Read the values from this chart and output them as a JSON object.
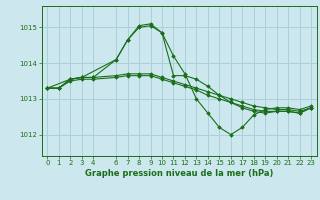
{
  "bg_color": "#cce8ee",
  "grid_color": "#aad0d8",
  "line_color": "#1a6e1a",
  "title": "Graphe pression niveau de la mer (hPa)",
  "xlim": [
    -0.5,
    23.5
  ],
  "ylim": [
    1011.4,
    1015.6
  ],
  "yticks": [
    1012,
    1013,
    1014,
    1015
  ],
  "xtick_vals": [
    0,
    1,
    2,
    3,
    4,
    6,
    7,
    8,
    9,
    10,
    11,
    12,
    13,
    14,
    15,
    16,
    17,
    18,
    19,
    20,
    21,
    22,
    23
  ],
  "xtick_labels": [
    "0",
    "1",
    "2",
    "3",
    "4",
    "6",
    "7",
    "8",
    "9",
    "10",
    "11",
    "12",
    "13",
    "14",
    "15",
    "16",
    "17",
    "18",
    "19",
    "20",
    "21",
    "22",
    "23"
  ],
  "series": [
    {
      "x": [
        0,
        1,
        2,
        3,
        4,
        6,
        7,
        8,
        9,
        10,
        11,
        12,
        13,
        14,
        15,
        16,
        17,
        18,
        19,
        20,
        21,
        22,
        23
      ],
      "y": [
        1013.3,
        1013.3,
        1013.55,
        1013.6,
        1013.6,
        1013.65,
        1013.7,
        1013.7,
        1013.7,
        1013.6,
        1013.5,
        1013.4,
        1013.3,
        1013.2,
        1013.1,
        1013.0,
        1012.9,
        1012.8,
        1012.75,
        1012.7,
        1012.7,
        1012.65,
        1012.75
      ]
    },
    {
      "x": [
        0,
        1,
        2,
        3,
        4,
        6,
        7,
        8,
        9,
        10,
        11,
        12,
        13,
        14,
        15,
        16,
        17,
        18,
        19,
        20,
        21,
        22,
        23
      ],
      "y": [
        1013.3,
        1013.3,
        1013.5,
        1013.55,
        1013.55,
        1013.6,
        1013.65,
        1013.65,
        1013.65,
        1013.55,
        1013.45,
        1013.35,
        1013.25,
        1013.1,
        1013.0,
        1012.9,
        1012.8,
        1012.7,
        1012.65,
        1012.65,
        1012.65,
        1012.6,
        1012.75
      ]
    },
    {
      "x": [
        0,
        1,
        2,
        3,
        4,
        6,
        7,
        8,
        9,
        10,
        11,
        12,
        13,
        14,
        15,
        16,
        17,
        18,
        19,
        20,
        21,
        22,
        23
      ],
      "y": [
        1013.3,
        1013.3,
        1013.55,
        1013.6,
        1013.6,
        1014.1,
        1014.65,
        1015.0,
        1015.05,
        1014.85,
        1013.65,
        1013.65,
        1013.55,
        1013.35,
        1013.1,
        1012.9,
        1012.75,
        1012.65,
        1012.6,
        1012.65,
        1012.65,
        1012.6,
        1012.75
      ]
    },
    {
      "x": [
        0,
        2,
        3,
        6,
        7,
        8,
        9,
        10,
        11,
        12,
        13,
        14,
        15,
        16,
        17,
        18,
        19,
        20,
        21,
        22,
        23
      ],
      "y": [
        1013.3,
        1013.55,
        1013.6,
        1014.1,
        1014.65,
        1015.05,
        1015.1,
        1014.85,
        1014.2,
        1013.7,
        1013.0,
        1012.6,
        1012.2,
        1012.0,
        1012.2,
        1012.55,
        1012.7,
        1012.75,
        1012.75,
        1012.7,
        1012.8
      ]
    }
  ]
}
